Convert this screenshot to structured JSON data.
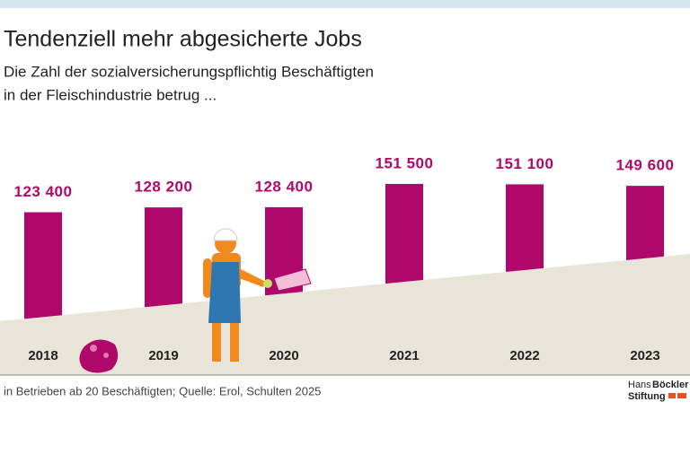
{
  "chart_data": {
    "type": "bar",
    "title": "Tendenziell mehr abgesicherte Jobs",
    "subtitle": [
      "Die Zahl der sozialversicherungspflichtig Beschäftigten",
      "in der Fleischindustrie betrug ..."
    ],
    "categories": [
      "2018",
      "2019",
      "2020",
      "2021",
      "2022",
      "2023"
    ],
    "values": [
      123400,
      128200,
      128400,
      151500,
      151100,
      149600
    ],
    "value_labels": [
      "123 400",
      "128 200",
      "128 400",
      "151 500",
      "151 100",
      "149 600"
    ],
    "color": "#b0086a",
    "ylim": [
      0,
      180000
    ],
    "note": "in Betrieben ab 20 Beschäftigten; Quelle: Erol, Schulten 2025",
    "logo": [
      "Hans",
      "Böckler",
      "Stiftung"
    ]
  }
}
